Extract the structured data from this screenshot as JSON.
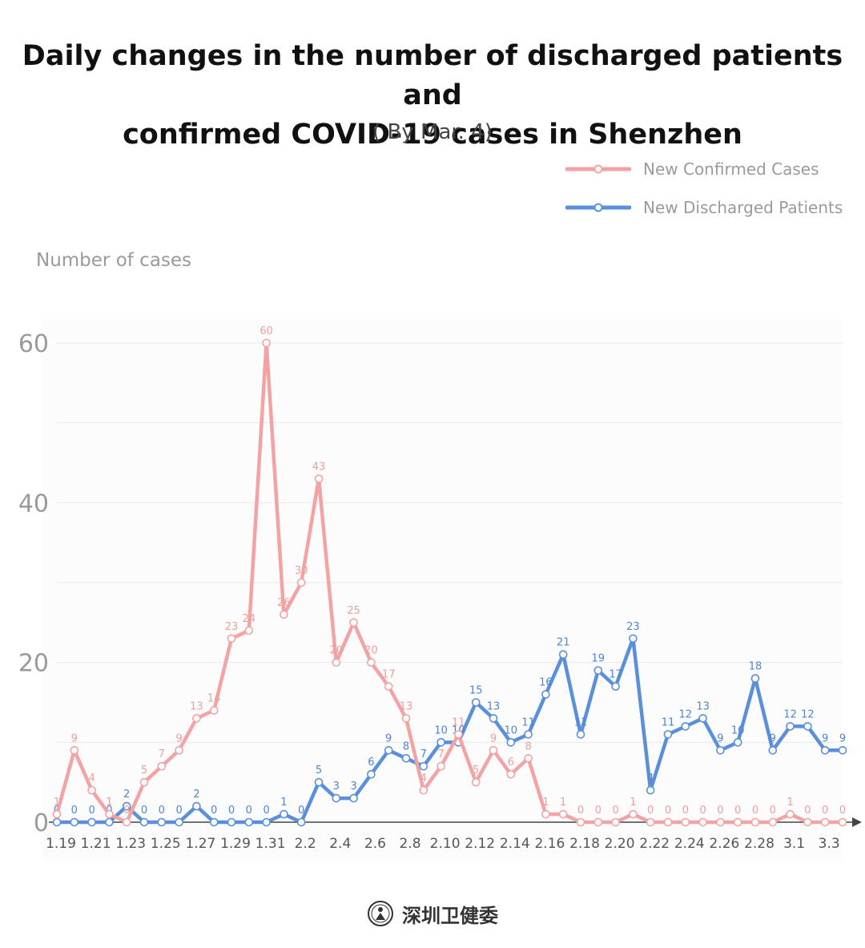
{
  "title_line1": "Daily changes in the number of discharged patients and",
  "title_line2": "confirmed COVID-19 cases in Shenzhen",
  "subtitle": "( By Mar. 4)",
  "footer_text": "深圳卫健委",
  "colors": {
    "confirmed": "#f3a3a3",
    "discharged": "#5a8fdb",
    "confirmed_label": "#ef9e9e",
    "discharged_label": "#4d86d6",
    "grid": "#e8e8e8",
    "axis_text": "#555555",
    "ytick_text": "#9a9a9a"
  },
  "chart_data": {
    "type": "line",
    "ylabel": "Number of cases",
    "ylim": [
      0,
      60
    ],
    "yticks": [
      0,
      20,
      40,
      60
    ],
    "x": [
      "1.19",
      "1.20",
      "1.21",
      "1.22",
      "1.23",
      "1.24",
      "1.25",
      "1.26",
      "1.27",
      "1.28",
      "1.29",
      "1.30",
      "1.31",
      "2.1",
      "2.2",
      "2.3",
      "2.4",
      "2.5",
      "2.6",
      "2.7",
      "2.8",
      "2.9",
      "2.10",
      "2.11",
      "2.12",
      "2.13",
      "2.14",
      "2.15",
      "2.16",
      "2.17",
      "2.18",
      "2.19",
      "2.20",
      "2.21",
      "2.22",
      "2.23",
      "2.24",
      "2.25",
      "2.26",
      "2.27",
      "2.28",
      "2.29",
      "3.1",
      "3.2",
      "3.3",
      "3.4"
    ],
    "xtick_labels": [
      "1.19",
      "1.21",
      "1.23",
      "1.25",
      "1.27",
      "1.29",
      "1.31",
      "2.2",
      "2.4",
      "2.6",
      "2.8",
      "2.10",
      "2.12",
      "2.14",
      "2.16",
      "2.18",
      "2.20",
      "2.22",
      "2.24",
      "2.26",
      "2.28",
      "3.1",
      "3.3"
    ],
    "legend_position": "top-right",
    "grid": true,
    "series": [
      {
        "name": "New Confirmed Cases",
        "values": [
          1,
          9,
          4,
          1,
          0,
          5,
          7,
          9,
          13,
          14,
          23,
          24,
          60,
          26,
          30,
          43,
          20,
          25,
          20,
          17,
          13,
          4,
          7,
          11,
          5,
          9,
          6,
          8,
          1,
          1,
          0,
          0,
          0,
          1,
          0,
          0,
          0,
          0,
          0,
          0,
          0,
          0,
          1,
          0,
          0,
          0
        ]
      },
      {
        "name": "New Discharged Patients",
        "values": [
          0,
          0,
          0,
          0,
          2,
          0,
          0,
          0,
          2,
          0,
          0,
          0,
          0,
          1,
          0,
          5,
          3,
          3,
          6,
          9,
          8,
          7,
          10,
          10,
          15,
          13,
          10,
          11,
          16,
          21,
          11,
          19,
          17,
          23,
          4,
          11,
          12,
          13,
          9,
          10,
          18,
          9,
          12,
          12,
          9,
          9
        ]
      }
    ]
  }
}
